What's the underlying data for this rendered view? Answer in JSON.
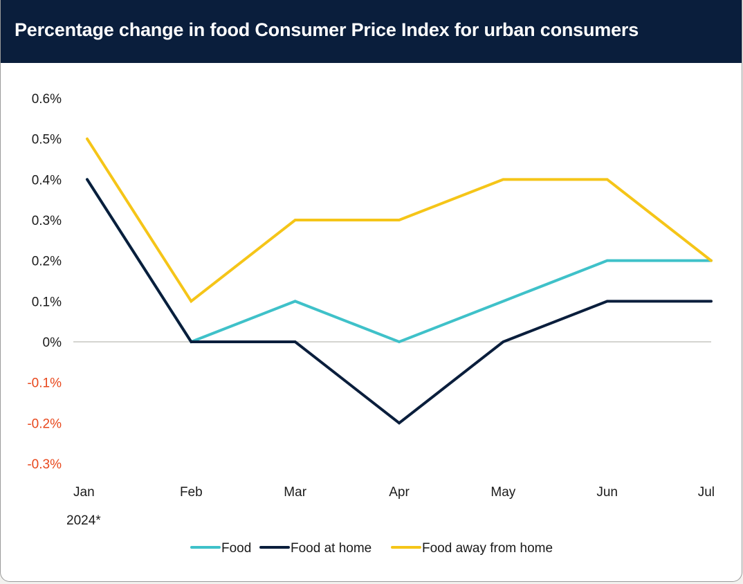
{
  "header": {
    "title": "Percentage change in food Consumer Price Index for urban consumers"
  },
  "chart_data": {
    "type": "line",
    "title": "Percentage change in food Consumer Price Index for urban consumers",
    "x": [
      "Jan",
      "Feb",
      "Mar",
      "Apr",
      "May",
      "Jun",
      "Jul"
    ],
    "x_note": "2024*",
    "ylim": [
      -0.3,
      0.6
    ],
    "yticks": [
      0.6,
      0.5,
      0.4,
      0.3,
      0.2,
      0.1,
      0,
      -0.1,
      -0.2,
      -0.3
    ],
    "ytick_labels": [
      "0.6%",
      "0.5%",
      "0.4%",
      "0.3%",
      "0.2%",
      "0.1%",
      "0%",
      "-0.1%",
      "-0.2%",
      "-0.3%"
    ],
    "series": [
      {
        "name": "Food",
        "color": "#3fc1c9",
        "values": [
          0.4,
          0.0,
          0.1,
          0.0,
          0.1,
          0.2,
          0.2
        ]
      },
      {
        "name": "Food at home",
        "color": "#0a1e3c",
        "values": [
          0.4,
          0.0,
          0.0,
          -0.2,
          0.0,
          0.1,
          0.1
        ]
      },
      {
        "name": "Food away from home",
        "color": "#f5c518",
        "values": [
          0.5,
          0.1,
          0.3,
          0.3,
          0.4,
          0.4,
          0.2
        ]
      }
    ],
    "negative_label_color": "#e8471c",
    "legend_position": "bottom-center",
    "grid": false
  }
}
